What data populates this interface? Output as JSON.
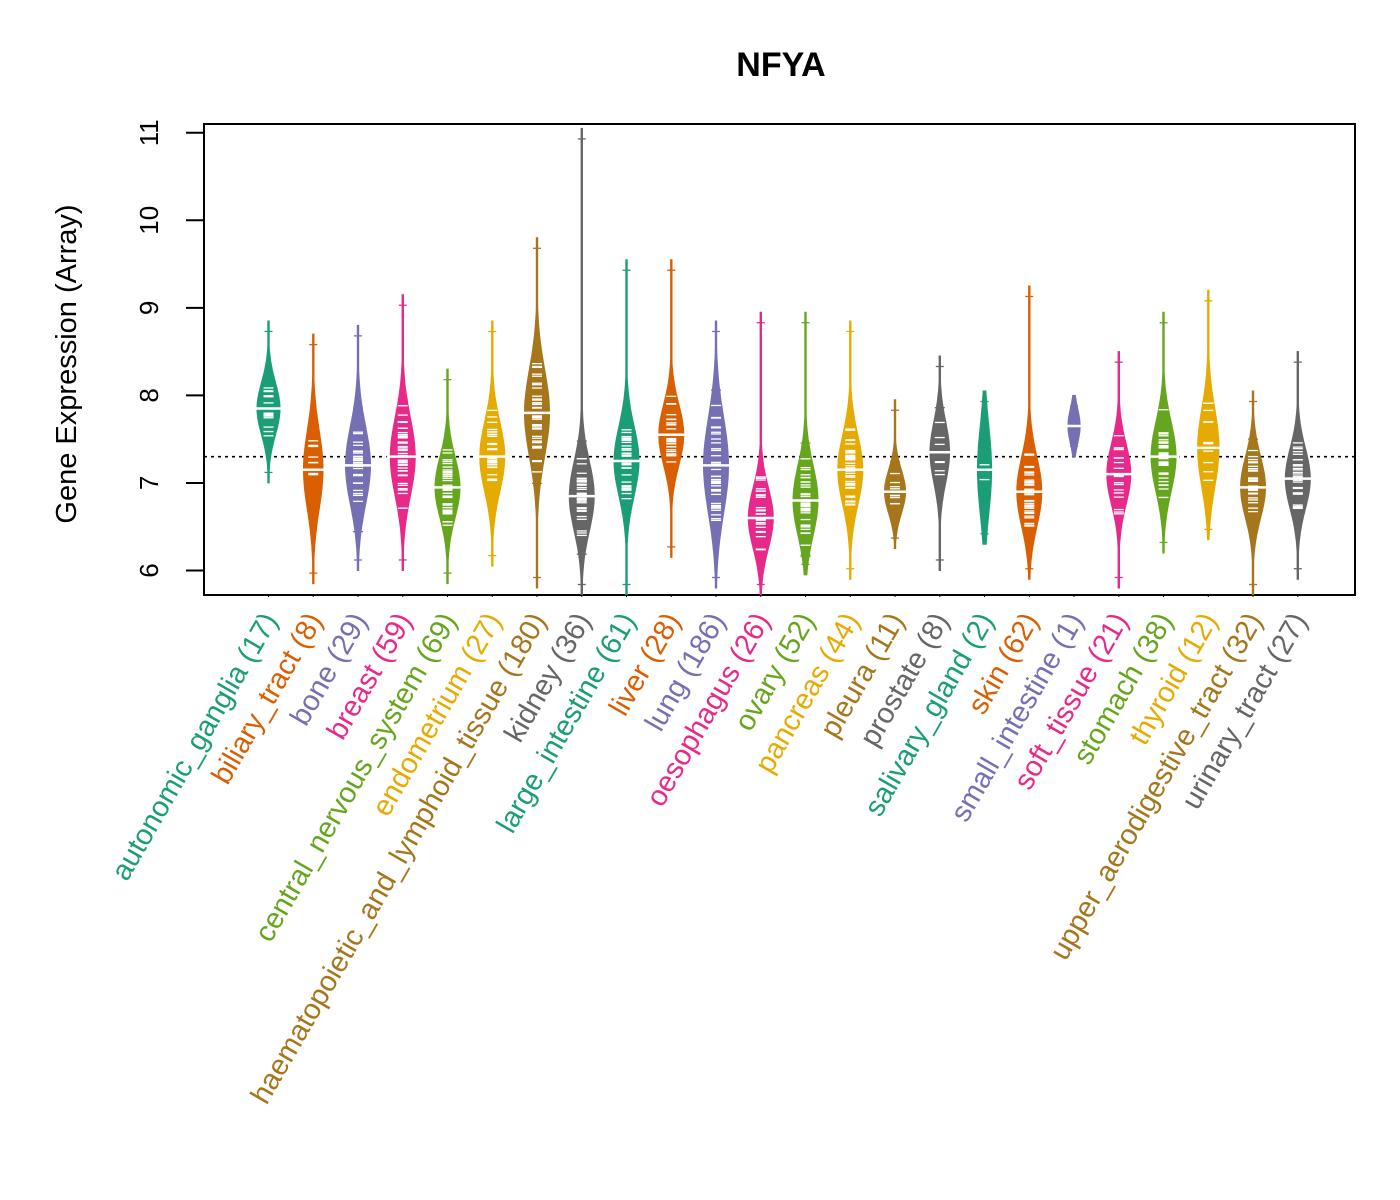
{
  "chart_data": {
    "type": "beanplot",
    "title": "NFYA",
    "xlabel": "",
    "ylabel": "Gene Expression (Array)",
    "ylim": [
      5.72,
      11.1
    ],
    "yticks": [
      6,
      7,
      8,
      9,
      10,
      11
    ],
    "reference_line": 7.3,
    "categories": [
      {
        "name": "autonomic_ganglia",
        "label": "autonomic_ganglia (17)",
        "n": 17,
        "color": "#1B9E77",
        "min": 7.0,
        "max": 8.85,
        "center": 7.85,
        "spread": 0.3
      },
      {
        "name": "biliary_tract",
        "label": "biliary_tract (8)",
        "n": 8,
        "color": "#D95F02",
        "min": 5.85,
        "max": 8.7,
        "center": 7.15,
        "spread": 0.45
      },
      {
        "name": "bone",
        "label": "bone (29)",
        "n": 29,
        "color": "#7570B3",
        "min": 6.0,
        "max": 8.8,
        "center": 7.2,
        "spread": 0.45
      },
      {
        "name": "breast",
        "label": "breast (59)",
        "n": 59,
        "color": "#E7298A",
        "min": 6.0,
        "max": 9.15,
        "center": 7.3,
        "spread": 0.45
      },
      {
        "name": "central_nervous_system",
        "label": "central_nervous_system (69)",
        "n": 69,
        "color": "#66A61E",
        "min": 5.85,
        "max": 8.3,
        "center": 6.95,
        "spread": 0.35
      },
      {
        "name": "endometrium",
        "label": "endometrium (27)",
        "n": 27,
        "color": "#E6AB02",
        "min": 6.05,
        "max": 8.85,
        "center": 7.3,
        "spread": 0.4
      },
      {
        "name": "haematopoietic_and_lymphoid_tissue",
        "label": "haematopoietic_and_lymphoid_tissue (180)",
        "n": 180,
        "color": "#A6761D",
        "min": 5.8,
        "max": 9.8,
        "center": 7.8,
        "spread": 0.5
      },
      {
        "name": "kidney",
        "label": "kidney (36)",
        "n": 36,
        "color": "#666666",
        "min": 5.72,
        "max": 11.05,
        "center": 6.85,
        "spread": 0.4
      },
      {
        "name": "large_intestine",
        "label": "large_intestine (61)",
        "n": 61,
        "color": "#1B9E77",
        "min": 5.72,
        "max": 9.55,
        "center": 7.25,
        "spread": 0.4
      },
      {
        "name": "liver",
        "label": "liver (28)",
        "n": 28,
        "color": "#D95F02",
        "min": 6.15,
        "max": 9.55,
        "center": 7.55,
        "spread": 0.35
      },
      {
        "name": "lung",
        "label": "lung (186)",
        "n": 186,
        "color": "#7570B3",
        "min": 5.8,
        "max": 8.85,
        "center": 7.2,
        "spread": 0.55
      },
      {
        "name": "oesophagus",
        "label": "oesophagus (26)",
        "n": 26,
        "color": "#E7298A",
        "min": 5.72,
        "max": 8.95,
        "center": 6.6,
        "spread": 0.35
      },
      {
        "name": "ovary",
        "label": "ovary (52)",
        "n": 52,
        "color": "#66A61E",
        "min": 5.95,
        "max": 8.95,
        "center": 6.8,
        "spread": 0.4
      },
      {
        "name": "pancreas",
        "label": "pancreas (44)",
        "n": 44,
        "color": "#E6AB02",
        "min": 5.9,
        "max": 8.85,
        "center": 7.15,
        "spread": 0.4
      },
      {
        "name": "pleura",
        "label": "pleura (11)",
        "n": 11,
        "color": "#A6761D",
        "min": 6.25,
        "max": 7.95,
        "center": 6.9,
        "spread": 0.25
      },
      {
        "name": "prostate",
        "label": "prostate (8)",
        "n": 8,
        "color": "#666666",
        "min": 6.0,
        "max": 8.45,
        "center": 7.35,
        "spread": 0.35
      },
      {
        "name": "salivary_gland",
        "label": "salivary_gland (2)",
        "n": 2,
        "color": "#1B9E77",
        "min": 6.3,
        "max": 8.05,
        "center": 7.15,
        "spread": 0.5
      },
      {
        "name": "skin",
        "label": "skin (62)",
        "n": 62,
        "color": "#D95F02",
        "min": 5.9,
        "max": 9.25,
        "center": 6.9,
        "spread": 0.4
      },
      {
        "name": "small_intestine",
        "label": "small_intestine (1)",
        "n": 1,
        "color": "#7570B3",
        "min": 7.3,
        "max": 8.0,
        "center": 7.65,
        "spread": 0.2
      },
      {
        "name": "soft_tissue",
        "label": "soft_tissue (21)",
        "n": 21,
        "color": "#E7298A",
        "min": 5.8,
        "max": 8.5,
        "center": 7.1,
        "spread": 0.35
      },
      {
        "name": "stomach",
        "label": "stomach (38)",
        "n": 38,
        "color": "#66A61E",
        "min": 6.2,
        "max": 8.95,
        "center": 7.3,
        "spread": 0.4
      },
      {
        "name": "thyroid",
        "label": "thyroid (12)",
        "n": 12,
        "color": "#E6AB02",
        "min": 6.35,
        "max": 9.2,
        "center": 7.4,
        "spread": 0.45
      },
      {
        "name": "upper_aerodigestive_tract",
        "label": "upper_aerodigestive_tract (32)",
        "n": 32,
        "color": "#A6761D",
        "min": 5.72,
        "max": 8.05,
        "center": 6.95,
        "spread": 0.35
      },
      {
        "name": "urinary_tract",
        "label": "urinary_tract (27)",
        "n": 27,
        "color": "#666666",
        "min": 5.9,
        "max": 8.5,
        "center": 7.05,
        "spread": 0.35
      }
    ]
  }
}
